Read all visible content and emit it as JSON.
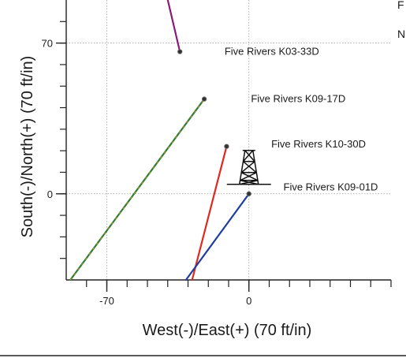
{
  "chart_data": {
    "type": "line",
    "xlabel": "West(-)/East(+) (70 ft/in)",
    "ylabel": "South(-)/North(+) (70 ft/in)",
    "xlim": [
      -90,
      70
    ],
    "ylim": [
      -40,
      90
    ],
    "xticks": [
      -70,
      0
    ],
    "yticks": [
      0,
      70
    ],
    "grid": true,
    "series": [
      {
        "name": "Five Rivers K03-33D",
        "color": "#8b1a7a",
        "points": [
          [
            -40,
            90
          ],
          [
            -34,
            66
          ]
        ]
      },
      {
        "name": "Five Rivers K09-17D",
        "color": "#2e7d32",
        "accent": "#e0a020",
        "points": [
          [
            -88,
            -40
          ],
          [
            -22,
            44
          ]
        ]
      },
      {
        "name": "Five Rivers K10-30D",
        "color": "#e0281e",
        "points": [
          [
            -28,
            -40
          ],
          [
            -11,
            22
          ]
        ]
      },
      {
        "name": "Five Rivers K09-01D",
        "color": "#1f3f9e",
        "points": [
          [
            -31,
            -40
          ],
          [
            0,
            0
          ]
        ]
      }
    ],
    "annotations": [
      {
        "text": "Five Rivers K03-33D",
        "x": -12,
        "y": 66
      },
      {
        "text": "Five Rivers K09-17D",
        "x": 1,
        "y": 44
      },
      {
        "text": "Five Rivers K10-30D",
        "x": 11,
        "y": 23
      },
      {
        "text": "Five Rivers K09-01D",
        "x": 17,
        "y": 3
      }
    ],
    "surface_location_icon": "drilling-rig-icon",
    "edge_text": [
      "F",
      "N"
    ]
  }
}
